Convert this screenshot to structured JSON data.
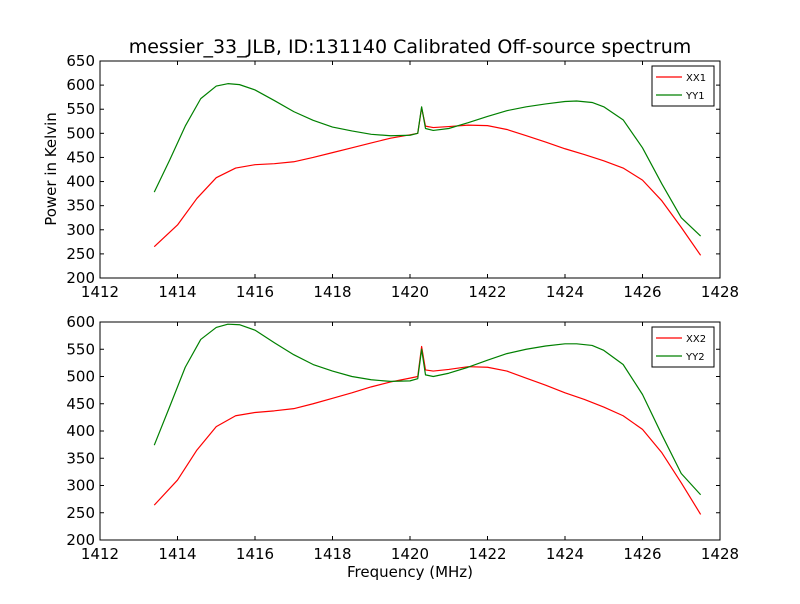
{
  "title": "messier_33_JLB, ID:131140 Calibrated Off-source spectrum",
  "xlabel": "Frequency (MHz)",
  "chart_data": [
    {
      "type": "line",
      "title": "messier_33_JLB, ID:131140 Calibrated Off-source spectrum",
      "xlabel": "",
      "ylabel": "Power in Kelvin",
      "xlim": [
        1412,
        1428
      ],
      "ylim": [
        200,
        650
      ],
      "xticks": [
        1412,
        1414,
        1416,
        1418,
        1420,
        1422,
        1424,
        1426,
        1428
      ],
      "yticks": [
        200,
        250,
        300,
        350,
        400,
        450,
        500,
        550,
        600,
        650
      ],
      "legend_position": "top-right",
      "grid": false,
      "series": [
        {
          "name": "XX1",
          "color": "#ff0000",
          "x": [
            1413.4,
            1414.0,
            1414.5,
            1415.0,
            1415.5,
            1416.0,
            1416.5,
            1417.0,
            1417.5,
            1418.0,
            1418.5,
            1419.0,
            1419.5,
            1420.0,
            1420.2,
            1420.3,
            1420.4,
            1420.6,
            1421.0,
            1421.5,
            1422.0,
            1422.5,
            1423.0,
            1423.5,
            1424.0,
            1424.5,
            1425.0,
            1425.5,
            1426.0,
            1426.5,
            1427.0,
            1427.5
          ],
          "y": [
            265,
            310,
            365,
            408,
            428,
            435,
            437,
            441,
            450,
            460,
            470,
            480,
            490,
            497,
            500,
            553,
            515,
            512,
            514,
            517,
            516,
            508,
            495,
            482,
            468,
            456,
            443,
            428,
            403,
            360,
            305,
            247
          ]
        },
        {
          "name": "YY1",
          "color": "#008000",
          "x": [
            1413.4,
            1413.8,
            1414.2,
            1414.6,
            1415.0,
            1415.3,
            1415.6,
            1416.0,
            1416.5,
            1417.0,
            1417.5,
            1418.0,
            1418.5,
            1419.0,
            1419.5,
            1420.0,
            1420.2,
            1420.3,
            1420.4,
            1420.6,
            1421.0,
            1421.5,
            1422.0,
            1422.5,
            1423.0,
            1423.5,
            1424.0,
            1424.3,
            1424.7,
            1425.0,
            1425.5,
            1426.0,
            1426.5,
            1427.0,
            1427.5
          ],
          "y": [
            378,
            445,
            515,
            572,
            598,
            603,
            601,
            590,
            568,
            545,
            527,
            513,
            505,
            498,
            495,
            496,
            500,
            555,
            510,
            506,
            510,
            522,
            535,
            547,
            555,
            561,
            566,
            567,
            564,
            555,
            528,
            470,
            395,
            325,
            287
          ]
        }
      ]
    },
    {
      "type": "line",
      "title": "",
      "xlabel": "Frequency (MHz)",
      "ylabel": "",
      "xlim": [
        1412,
        1428
      ],
      "ylim": [
        200,
        600
      ],
      "xticks": [
        1412,
        1414,
        1416,
        1418,
        1420,
        1422,
        1424,
        1426,
        1428
      ],
      "yticks": [
        200,
        250,
        300,
        350,
        400,
        450,
        500,
        550,
        600
      ],
      "legend_position": "top-right",
      "grid": false,
      "series": [
        {
          "name": "XX2",
          "color": "#ff0000",
          "x": [
            1413.4,
            1414.0,
            1414.5,
            1415.0,
            1415.5,
            1416.0,
            1416.5,
            1417.0,
            1417.5,
            1418.0,
            1418.5,
            1419.0,
            1419.5,
            1420.0,
            1420.2,
            1420.3,
            1420.4,
            1420.6,
            1421.0,
            1421.5,
            1422.0,
            1422.5,
            1423.0,
            1423.5,
            1424.0,
            1424.5,
            1425.0,
            1425.5,
            1426.0,
            1426.5,
            1427.0,
            1427.5
          ],
          "y": [
            264,
            310,
            365,
            408,
            428,
            434,
            437,
            441,
            450,
            460,
            470,
            481,
            490,
            497,
            500,
            555,
            512,
            510,
            513,
            518,
            517,
            510,
            497,
            484,
            470,
            458,
            444,
            428,
            403,
            360,
            305,
            247
          ]
        },
        {
          "name": "YY2",
          "color": "#008000",
          "x": [
            1413.4,
            1413.8,
            1414.2,
            1414.6,
            1415.0,
            1415.3,
            1415.6,
            1416.0,
            1416.5,
            1417.0,
            1417.5,
            1418.0,
            1418.5,
            1419.0,
            1419.5,
            1420.0,
            1420.2,
            1420.3,
            1420.4,
            1420.6,
            1421.0,
            1421.5,
            1422.0,
            1422.5,
            1423.0,
            1423.5,
            1424.0,
            1424.3,
            1424.7,
            1425.0,
            1425.5,
            1426.0,
            1426.5,
            1427.0,
            1427.5
          ],
          "y": [
            374,
            445,
            517,
            568,
            590,
            596,
            595,
            585,
            562,
            540,
            522,
            510,
            500,
            494,
            491,
            492,
            496,
            550,
            503,
            500,
            506,
            517,
            530,
            542,
            550,
            556,
            560,
            560,
            557,
            548,
            522,
            467,
            393,
            322,
            283
          ]
        }
      ]
    }
  ]
}
